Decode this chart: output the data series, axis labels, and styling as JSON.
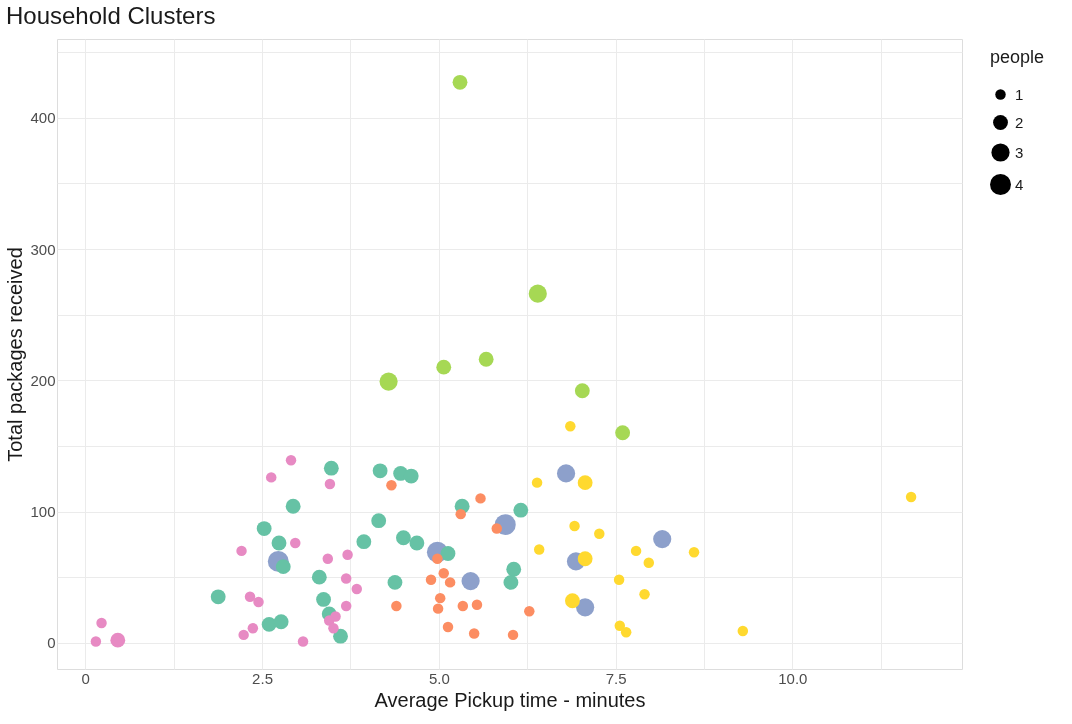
{
  "chart_data": {
    "type": "bubble",
    "title": "Household Clusters",
    "xlabel": "Average Pickup time - minutes",
    "ylabel": "Total packages received",
    "legend_title": "people",
    "xlim": [
      -0.4,
      12.4
    ],
    "ylim": [
      -20,
      460
    ],
    "xticks": [
      0,
      {
        "value": 1.25,
        "label": null
      },
      {
        "value": 2.5,
        "label": "2.5"
      },
      {
        "value": 3.75,
        "label": null
      },
      {
        "value": 5,
        "label": "5.0"
      },
      {
        "value": 6.25,
        "label": null
      },
      {
        "value": 7.5,
        "label": "7.5"
      },
      {
        "value": 8.75,
        "label": null
      },
      {
        "value": 10,
        "label": "10.0"
      },
      {
        "value": 11.25,
        "label": null
      }
    ],
    "yticks": [
      0,
      {
        "value": 50,
        "label": null
      },
      100,
      {
        "value": 150,
        "label": null
      },
      200,
      {
        "value": 250,
        "label": null
      },
      300,
      {
        "value": 350,
        "label": null
      },
      400,
      {
        "value": 450,
        "label": null
      }
    ],
    "grid": true,
    "size_legend": [
      1,
      2,
      3,
      4
    ],
    "series": [
      {
        "color": "#8da0cb",
        "x": [
          2.73,
          4.98,
          5.94,
          5.45,
          6.8,
          6.94,
          7.07,
          8.16
        ],
        "values": [
          62,
          69,
          90,
          47,
          129,
          62,
          27,
          79
        ],
        "sizes": [
          4,
          4,
          4,
          3,
          3,
          3,
          3,
          3
        ]
      },
      {
        "color": "#66c2a5",
        "x": [
          3.48,
          4.17,
          4.46,
          4.61,
          2.94,
          5.33,
          6.16,
          2.53,
          2.74,
          4.15,
          3.94,
          4.5,
          4.69,
          5.13,
          2.8,
          3.31,
          4.38,
          6.06,
          6.02,
          1.88,
          3.37,
          3.45,
          2.6,
          2.77,
          3.61
        ],
        "values": [
          133,
          131,
          129,
          127,
          104,
          104,
          101,
          87,
          76,
          93,
          77,
          80,
          76,
          68,
          58,
          50,
          46,
          56,
          46,
          35,
          33,
          22,
          14,
          16,
          5
        ],
        "sizes": [
          2,
          2,
          2,
          2,
          2,
          2,
          2,
          2,
          2,
          2,
          2,
          2,
          2,
          2,
          2,
          2,
          2,
          2,
          2,
          2,
          2,
          2,
          2,
          2,
          2
        ]
      },
      {
        "color": "#a6d854",
        "x": [
          5.3,
          6.4,
          4.29,
          5.07,
          5.67,
          7.03,
          7.6
        ],
        "values": [
          427,
          266,
          199,
          210,
          216,
          192,
          160
        ],
        "sizes": [
          2,
          3,
          3,
          2,
          2,
          2,
          2
        ]
      },
      {
        "color": "#ffd92f",
        "x": [
          7.07,
          7.07,
          6.89,
          6.86,
          6.39,
          11.68,
          6.92,
          7.27,
          6.42,
          7.79,
          8.61,
          7.97,
          7.55,
          7.91,
          7.56,
          7.65,
          9.3
        ],
        "values": [
          122,
          64,
          32,
          165,
          122,
          111,
          89,
          83,
          71,
          70,
          69,
          61,
          48,
          37,
          13,
          8,
          9
        ],
        "sizes": [
          2,
          2,
          2,
          1,
          1,
          1,
          1,
          1,
          1,
          1,
          1,
          1,
          1,
          1,
          1,
          1,
          1
        ]
      },
      {
        "color": "#fc8d62",
        "x": [
          5.59,
          5.31,
          5.82,
          4.98,
          5.07,
          4.89,
          5.16,
          5.02,
          4.99,
          5.34,
          5.54,
          6.28,
          4.4,
          5.13,
          5.5,
          6.05,
          4.33
        ],
        "values": [
          110,
          98,
          87,
          64,
          53,
          48,
          46,
          34,
          26,
          28,
          29,
          24,
          28,
          12,
          7,
          6,
          120
        ],
        "sizes": [
          1,
          1,
          1,
          1,
          1,
          1,
          1,
          1,
          1,
          1,
          1,
          1,
          1,
          1,
          1,
          1,
          1
        ]
      },
      {
        "color": "#e78ac3",
        "x": [
          2.91,
          2.63,
          3.46,
          2.97,
          2.21,
          3.43,
          3.71,
          3.69,
          3.84,
          2.33,
          2.45,
          3.69,
          3.54,
          3.45,
          3.51,
          2.37,
          2.24,
          3.08,
          0.23,
          0.15,
          0.46
        ],
        "values": [
          139,
          126,
          121,
          76,
          70,
          64,
          67,
          49,
          41,
          35,
          31,
          28,
          20,
          17,
          11,
          11,
          6,
          1,
          15,
          1,
          2
        ],
        "sizes": [
          1,
          1,
          1,
          1,
          1,
          1,
          1,
          1,
          1,
          1,
          1,
          1,
          1,
          1,
          1,
          1,
          1,
          1,
          1,
          1,
          2
        ]
      }
    ]
  }
}
